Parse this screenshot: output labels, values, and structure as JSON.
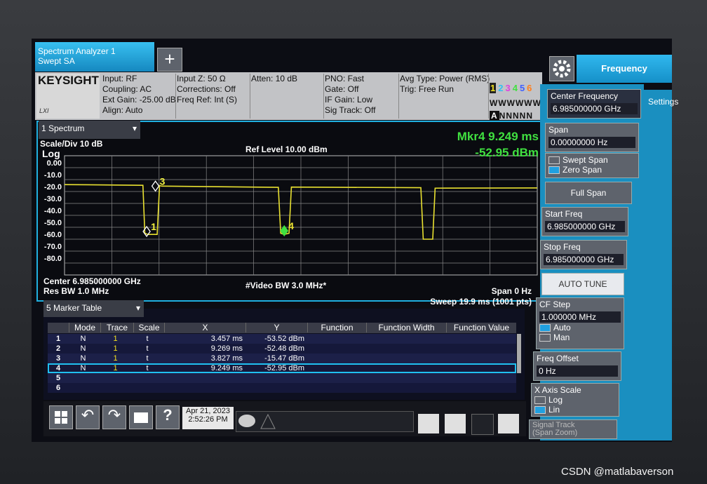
{
  "tab": {
    "title": "Spectrum Analyzer 1",
    "subtitle": "Swept SA"
  },
  "brand": "KEYSIGHT",
  "lxi": "LXI",
  "status": [
    [
      "Input: RF",
      "Coupling: AC",
      "Ext Gain: -25.00 dB",
      "Align: Auto"
    ],
    [
      "Input Z: 50 Ω",
      "Corrections: Off",
      "Freq Ref: Int (S)"
    ],
    [
      "Atten: 10 dB"
    ],
    [
      "PNO: Fast",
      "Gate: Off",
      "IF Gain: Low",
      "Sig Track: Off"
    ],
    [
      "Avg Type: Power (RMS)",
      "Trig: Free Run"
    ]
  ],
  "trace_indicator": {
    "numbers": [
      "1",
      "2",
      "3",
      "4",
      "5",
      "6"
    ],
    "colors": [
      "#f0e020",
      "#30c0f0",
      "#e040e0",
      "#40e040",
      "#4060ff",
      "#ff8020"
    ],
    "types": "WWWWWW",
    "detector_active": "A",
    "detectors": "NNNNN"
  },
  "window": {
    "title": "1 Spectrum",
    "scale": "Scale/Div 10 dB",
    "log": "Log",
    "ref_level": "Ref Level 10.00 dBm",
    "marker_readout": [
      "Mkr4  9.249 ms",
      "-52.95 dBm"
    ],
    "center": "Center 6.985000000 GHz",
    "res_bw": "Res BW 1.0 MHz",
    "video_bw": "#Video BW 3.0 MHz*",
    "span": "Span 0 Hz",
    "sweep": "Sweep 19.9 ms (1001 pts)"
  },
  "chart_data": {
    "type": "line",
    "color": "#e8e030",
    "x": [
      0,
      3.3,
      3.38,
      3.5,
      3.9,
      4.0,
      4.1,
      9.0,
      9.1,
      9.25,
      9.45,
      9.55,
      15.0,
      15.1,
      15.3,
      15.5,
      15.6,
      19.9
    ],
    "values": [
      -14.2,
      -14.8,
      -55,
      -56,
      -56,
      -15,
      -15.5,
      -16.5,
      -55,
      -56,
      -55,
      -16.3,
      -16.8,
      -60,
      -60,
      -60,
      -17.2,
      -17
    ],
    "xlim": [
      0,
      19.9
    ],
    "ylim": [
      -90,
      10
    ],
    "yticks": [
      {
        "value": 0,
        "label": "0.00"
      },
      {
        "value": -10,
        "label": "-10.0"
      },
      {
        "value": -20,
        "label": "-20.0"
      },
      {
        "value": -30,
        "label": "-30.0"
      },
      {
        "value": -40,
        "label": "-40.0"
      },
      {
        "value": -50,
        "label": "-50.0"
      },
      {
        "value": -60,
        "label": "-60.0"
      },
      {
        "value": -70,
        "label": "-70.0"
      },
      {
        "value": -80,
        "label": "-80.0"
      }
    ],
    "markers": [
      {
        "label": "1",
        "x": 3.457,
        "y": -53.52
      },
      {
        "label": "3",
        "x": 3.827,
        "y": -15.47
      },
      {
        "label": "4",
        "x": 9.249,
        "y": -52.95
      }
    ]
  },
  "marker_table": {
    "title": "5 Marker Table",
    "headers": [
      "Mode",
      "Trace",
      "Scale",
      "X",
      "Y",
      "Function",
      "Function Width",
      "Function Value"
    ],
    "rows": [
      [
        "1",
        "N",
        "1",
        "t",
        "3.457 ms",
        "-53.52 dBm"
      ],
      [
        "2",
        "N",
        "1",
        "t",
        "9.269 ms",
        "-52.48 dBm"
      ],
      [
        "3",
        "N",
        "1",
        "t",
        "3.827 ms",
        "-15.47 dBm"
      ],
      [
        "4",
        "N",
        "1",
        "t",
        "9.249 ms",
        "-52.95 dBm"
      ],
      [
        "5"
      ],
      [
        "6"
      ]
    ]
  },
  "taskbar": {
    "date": "Apr 21, 2023",
    "time": "2:52:26 PM"
  },
  "softkeys": {
    "menu": "Frequency",
    "tab": "Settings",
    "center_freq": {
      "label": "Center Frequency",
      "value": "6.985000000 GHz"
    },
    "span": {
      "label": "Span",
      "value": "0.00000000 Hz"
    },
    "span_mode": [
      "Swept Span",
      "Zero Span"
    ],
    "full_span": "Full Span",
    "start_freq": {
      "label": "Start Freq",
      "value": "6.985000000 GHz"
    },
    "stop_freq": {
      "label": "Stop Freq",
      "value": "6.985000000 GHz"
    },
    "auto_tune": "AUTO TUNE",
    "cf_step": {
      "label": "CF Step",
      "value": "1.000000 MHz",
      "options": [
        "Auto",
        "Man"
      ]
    },
    "freq_offset": {
      "label": "Freq Offset",
      "value": "0 Hz"
    },
    "x_axis_scale": {
      "label": "X Axis Scale",
      "options": [
        "Log",
        "Lin"
      ]
    },
    "signal_track": [
      "Signal Track",
      "(Span Zoom)"
    ]
  },
  "watermark": "CSDN @matlabaverson"
}
